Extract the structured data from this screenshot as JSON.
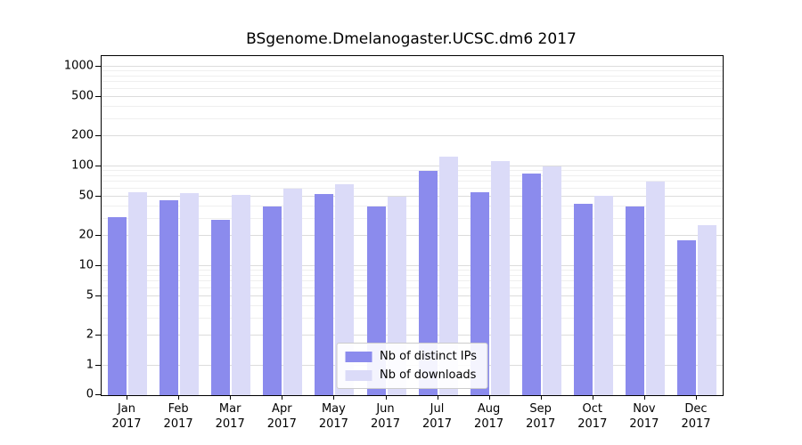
{
  "title": "BSgenome.Dmelanogaster.UCSC.dm6 2017",
  "chart_data": {
    "type": "bar",
    "title": "BSgenome.Dmelanogaster.UCSC.dm6 2017",
    "categories": [
      "Jan",
      "Feb",
      "Mar",
      "Apr",
      "May",
      "Jun",
      "Jul",
      "Aug",
      "Sep",
      "Oct",
      "Nov",
      "Dec"
    ],
    "x_sublabel": "2017",
    "series": [
      {
        "name": "Nb of distinct IPs",
        "color": "#8b8bed",
        "values": [
          31,
          46,
          29,
          40,
          53,
          40,
          91,
          55,
          85,
          42,
          40,
          18
        ]
      },
      {
        "name": "Nb of downloads",
        "color": "#dbdbf8",
        "values": [
          55,
          54,
          52,
          60,
          66,
          50,
          126,
          113,
          101,
          51,
          71,
          26
        ]
      }
    ],
    "y_ticks": [
      0,
      1,
      2,
      5,
      10,
      20,
      50,
      100,
      200,
      500,
      1000
    ],
    "y_scale": "symlog",
    "ylim": [
      0,
      1500
    ],
    "xlabel": "",
    "ylabel": "",
    "grid": true,
    "legend_position": "lower center",
    "colors": {
      "axis": "#000000",
      "grid_major": "#dcdcdc",
      "grid_minor": "#efefef",
      "background": "#ffffff"
    }
  }
}
